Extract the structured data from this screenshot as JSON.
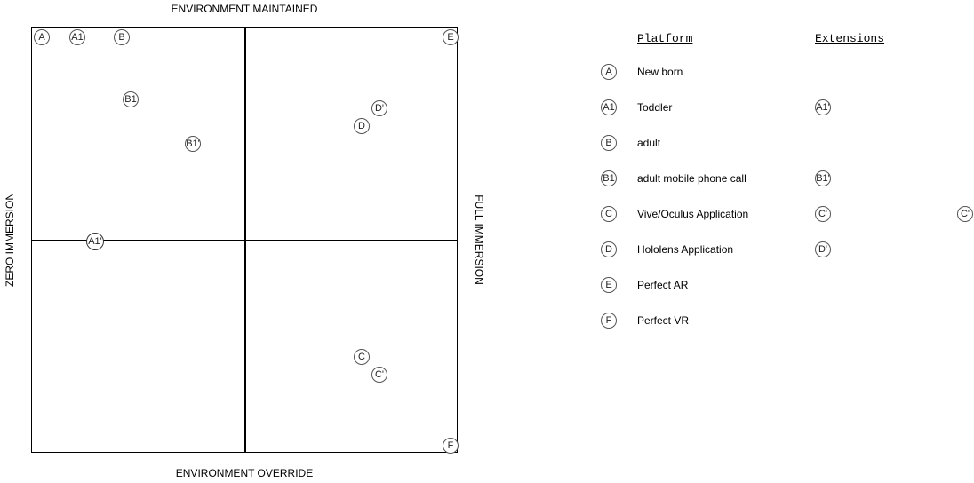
{
  "axes": {
    "top": "ENVIRONMENT MAINTAINED",
    "bottom": "ENVIRONMENT OVERRIDE",
    "left": "ZERO IMMERSION",
    "right": "FULL IMMERSION"
  },
  "points": {
    "A": "A",
    "A1": "A1",
    "B": "B",
    "B1": "B1",
    "B1p": "B1'",
    "E": "E",
    "Dp": "D'",
    "D": "D",
    "A1p": "A1'",
    "C": "C",
    "Cp": "C'",
    "F": "F"
  },
  "legend": {
    "platform_header": "Platform",
    "extensions_header": "Extensions",
    "items": [
      {
        "marker": "A",
        "label": "New born"
      },
      {
        "marker": "A1",
        "label": "Toddler"
      },
      {
        "marker": "B",
        "label": "adult"
      },
      {
        "marker": "B1",
        "label": "adult mobile phone call"
      },
      {
        "marker": "C",
        "label": "Vive/Oculus Application"
      },
      {
        "marker": "D",
        "label": "Hololens Application"
      },
      {
        "marker": "E",
        "label": "Perfect AR"
      },
      {
        "marker": "F",
        "label": "Perfect VR"
      }
    ],
    "extensions": {
      "A1p": "A1'",
      "B1p": "B1'",
      "Cp": "C'",
      "Dp": "D'",
      "Cp_far": "C'"
    }
  }
}
